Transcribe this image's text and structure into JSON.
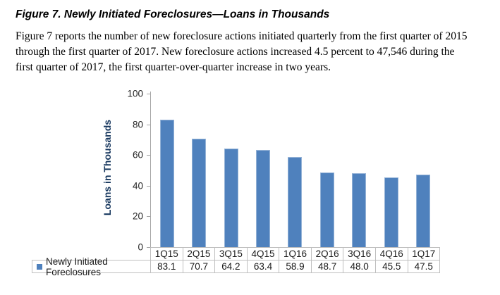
{
  "figure": {
    "title": "Figure 7. Newly Initiated Foreclosures—Loans in Thousands",
    "description_lines": [
      "Figure 7 reports the number of new foreclosure actions initiated quarterly from the first quarter of 2015",
      "through the first quarter of 2017. New foreclosure actions increased 4.5 percent to 47,546 during the",
      "first quarter of 2017, the first quarter-over-quarter increase in two years."
    ]
  },
  "chart_data": {
    "type": "bar",
    "title": "",
    "categories": [
      "1Q15",
      "2Q15",
      "3Q15",
      "4Q15",
      "1Q16",
      "2Q16",
      "3Q16",
      "4Q16",
      "1Q17"
    ],
    "series": [
      {
        "name": "Newly Initiated Foreclosures",
        "values": [
          83.1,
          70.7,
          64.2,
          63.4,
          58.9,
          48.7,
          48.0,
          45.5,
          47.5
        ]
      }
    ],
    "value_labels": [
      "83.1",
      "70.7",
      "64.2",
      "63.4",
      "58.9",
      "48.7",
      "48.0",
      "45.5",
      "47.5"
    ],
    "xlabel": "",
    "ylabel": "Loans in Thousands",
    "ylim": [
      0,
      100
    ],
    "yticks": [
      0,
      20,
      40,
      60,
      80,
      100
    ],
    "grid": false,
    "legend_label": "Newly Initiated Foreclosures",
    "legend_position": "bottom-table",
    "colors": {
      "bar_fill": "#4F81BD",
      "bar_border": "#95B3D7",
      "axis_line": "#A6A6A6",
      "ylabel_text": "#17375E",
      "table_border": "#BFBFBF",
      "tick_text": "#262626"
    }
  }
}
